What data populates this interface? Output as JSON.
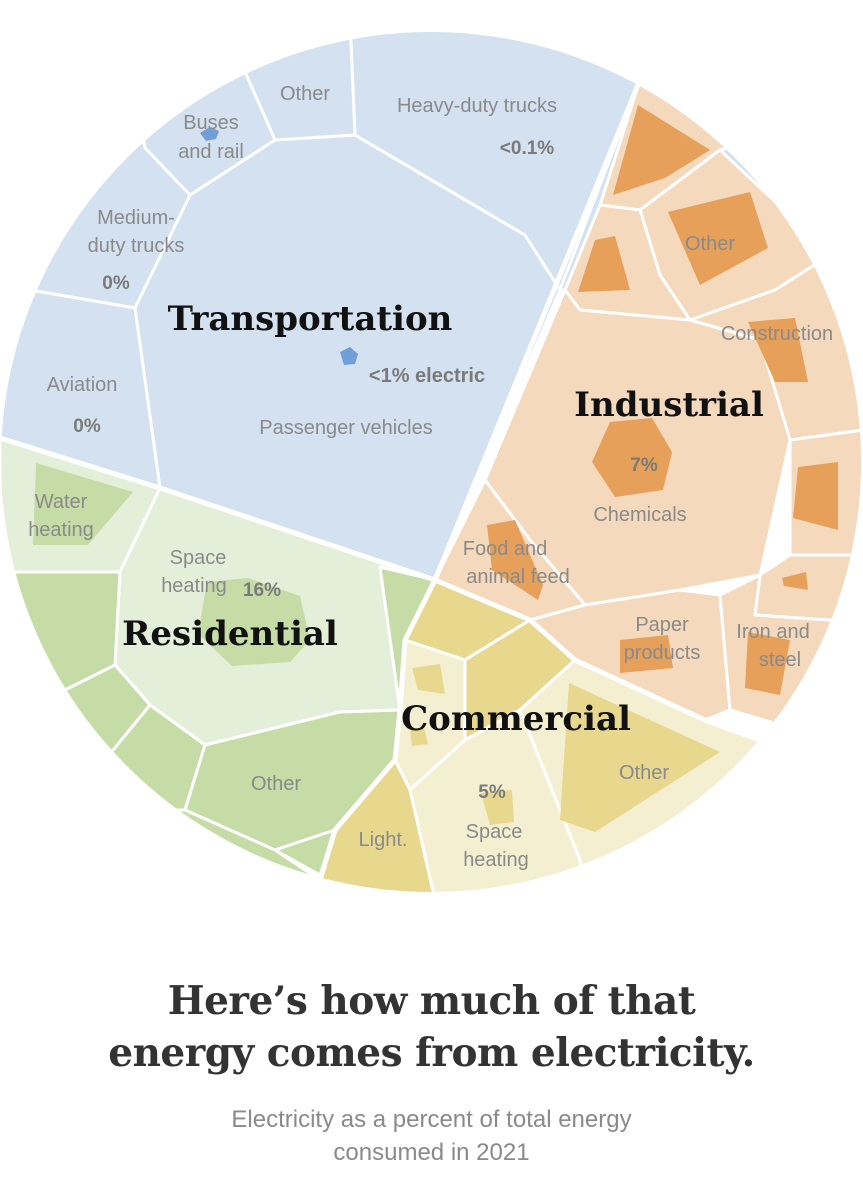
{
  "chart_data": {
    "type": "voronoi-treemap",
    "title": "Here’s how much of that energy comes from electricity.",
    "subtitle": "Electricity as a percent of total energy consumed in 2021",
    "sectors": [
      {
        "name": "Transportation",
        "color": "#d3e1f0",
        "electric_color": "#6f9fd6",
        "summary": "<1% electric",
        "subsectors": [
          {
            "name": "Passenger vehicles",
            "value": null
          },
          {
            "name": "Heavy-duty trucks",
            "value": "<0.1%"
          },
          {
            "name": "Other",
            "value": null
          },
          {
            "name": "Buses and rail",
            "value": null
          },
          {
            "name": "Medium-duty trucks",
            "value": "0%"
          },
          {
            "name": "Aviation",
            "value": "0%"
          }
        ]
      },
      {
        "name": "Industrial",
        "color": "#f5d9bd",
        "electric_color": "#e6a05a",
        "subsectors": [
          {
            "name": "Chemicals",
            "value": "7%"
          },
          {
            "name": "Other",
            "value": null
          },
          {
            "name": "Construction",
            "value": null
          },
          {
            "name": "Food and animal feed",
            "value": null
          },
          {
            "name": "Paper products",
            "value": null
          },
          {
            "name": "Iron and steel",
            "value": null
          }
        ]
      },
      {
        "name": "Residential",
        "color": "#e4efda",
        "electric_color": "#c5dca6",
        "subsectors": [
          {
            "name": "Space heating",
            "value": "16%"
          },
          {
            "name": "Water heating",
            "value": null
          },
          {
            "name": "Other",
            "value": null
          }
        ]
      },
      {
        "name": "Commercial",
        "color": "#f5efd2",
        "electric_color": "#e7d88e",
        "subsectors": [
          {
            "name": "Space heating",
            "value": "5%"
          },
          {
            "name": "Light.",
            "value": null
          },
          {
            "name": "Other",
            "value": null
          }
        ]
      }
    ]
  },
  "labels": {
    "trans_sector": "Transportation",
    "trans_summary": "<1% electric",
    "passenger": "Passenger vehicles",
    "heavy": "Heavy-duty trucks",
    "heavy_pct": "<0.1%",
    "trans_other": "Other",
    "buses_1": "Buses",
    "buses_2": "and rail",
    "medium_1": "Medium-",
    "medium_2": "duty trucks",
    "medium_pct": "0%",
    "aviation": "Aviation",
    "aviation_pct": "0%",
    "ind_sector": "Industrial",
    "ind_other": "Other",
    "construction": "Construction",
    "chem_pct": "7%",
    "chemicals": "Chemicals",
    "food_1": "Food and",
    "food_2": "animal feed",
    "paper_1": "Paper",
    "paper_2": "products",
    "iron_1": "Iron and",
    "iron_2": "steel",
    "res_sector": "Residential",
    "water_1": "Water",
    "water_2": "heating",
    "res_space_1": "Space",
    "res_space_2": "heating",
    "res_space_pct": "16%",
    "res_other": "Other",
    "com_sector": "Commercial",
    "com_other": "Other",
    "com_pct": "5%",
    "com_space_1": "Space",
    "com_space_2": "heating",
    "lighting": "Light."
  },
  "headline": {
    "line1": "Here’s how much of that",
    "line2": "energy comes from electricity."
  },
  "subhead": {
    "line1": "Electricity as a percent of total energy",
    "line2": "consumed in 2021"
  }
}
